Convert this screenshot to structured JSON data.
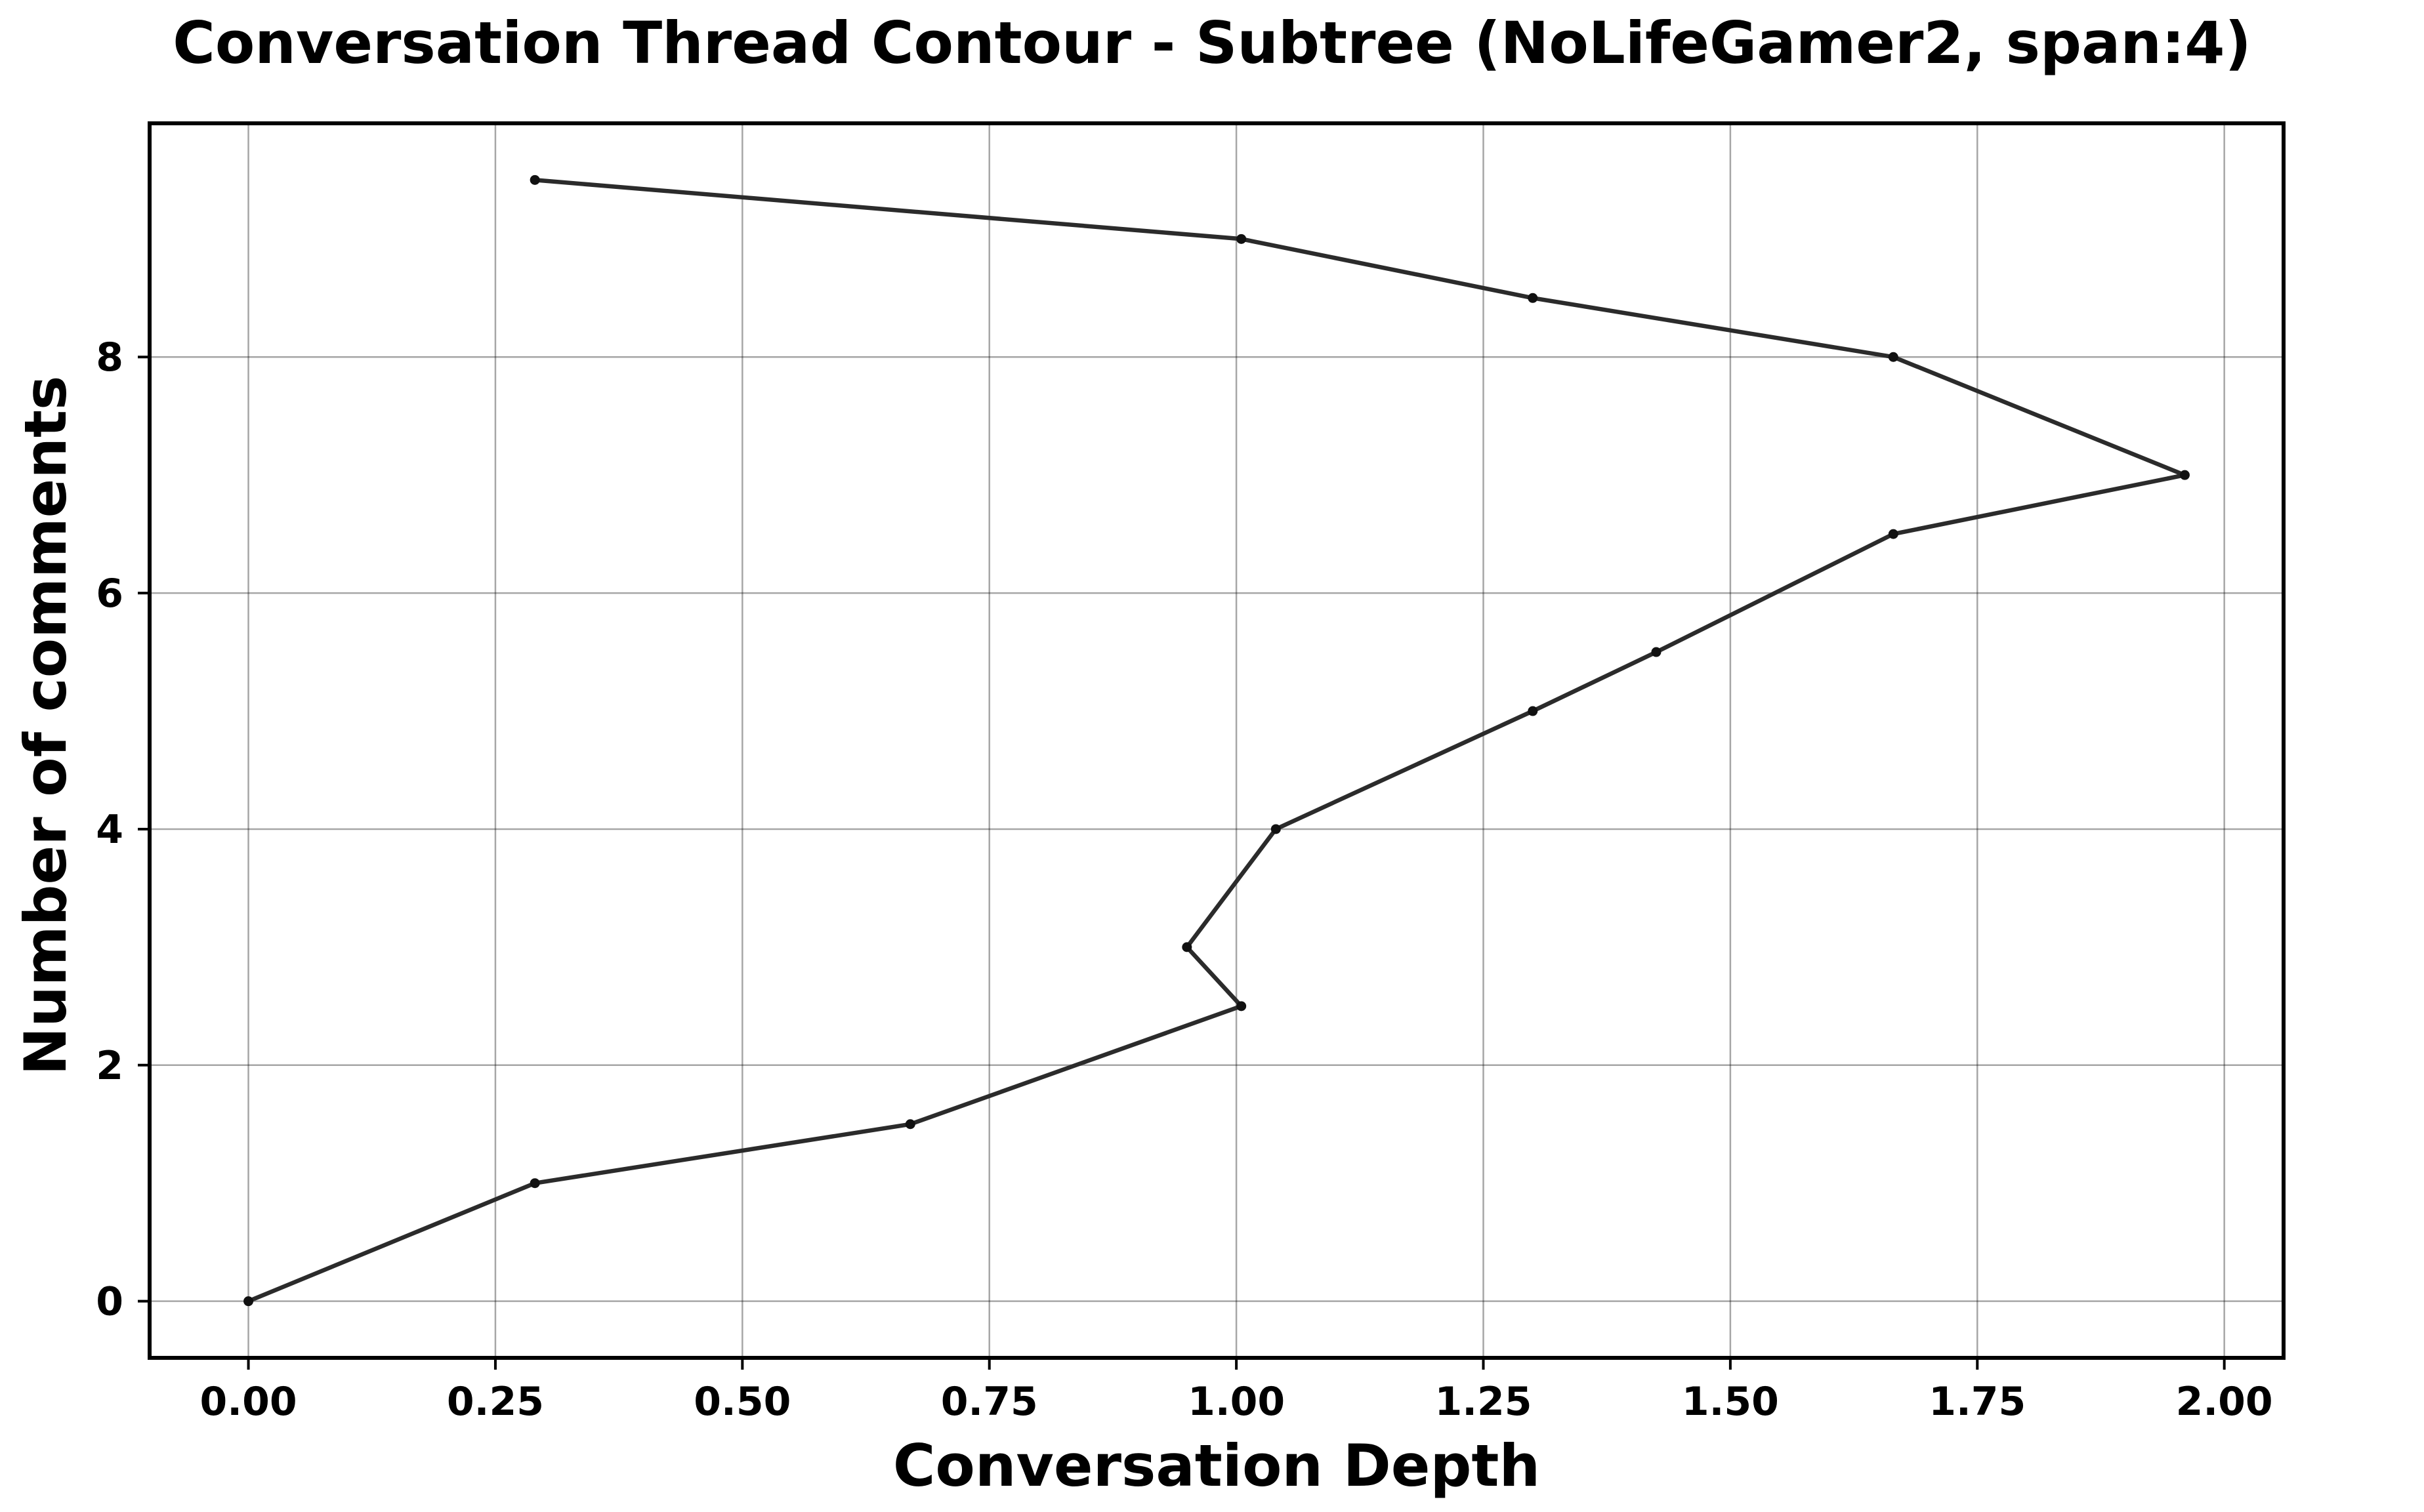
{
  "chart_data": {
    "type": "line",
    "title": "Conversation Thread Contour  - Subtree (NoLifeGamer2, span:4)",
    "xlabel": "Conversation Depth",
    "ylabel": "Number of comments",
    "xlim": [
      -0.1,
      2.06
    ],
    "ylim": [
      -0.48,
      9.98
    ],
    "xticks": [
      0.0,
      0.25,
      0.5,
      0.75,
      1.0,
      1.25,
      1.5,
      1.75,
      2.0
    ],
    "xtick_labels": [
      "0.00",
      "0.25",
      "0.50",
      "0.75",
      "1.00",
      "1.25",
      "1.50",
      "1.75",
      "2.00"
    ],
    "yticks": [
      0,
      2,
      4,
      6,
      8
    ],
    "ytick_labels": [
      "0",
      "2",
      "4",
      "6",
      "8"
    ],
    "grid": true,
    "line_color": "#2b2b2b",
    "x": [
      0.0,
      0.29,
      0.67,
      1.005,
      0.95,
      1.04,
      1.3,
      1.425,
      1.665,
      1.96,
      1.665,
      1.3,
      1.005,
      0.29
    ],
    "y": [
      0.0,
      1.0,
      1.5,
      2.5,
      3.0,
      4.0,
      5.0,
      5.5,
      6.5,
      7.0,
      8.0,
      8.5,
      9.0,
      9.5
    ]
  }
}
